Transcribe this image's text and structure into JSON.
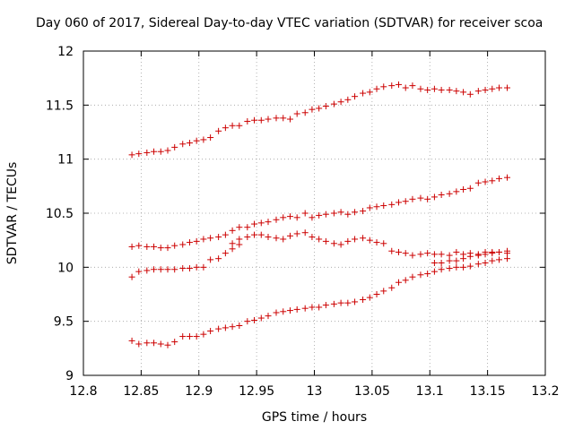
{
  "chart_data": {
    "type": "scatter",
    "title": "Day 060 of 2017, Sidereal Day-to-day VTEC variation (SDTVAR) for receiver scoa",
    "xlabel": "GPS time / hours",
    "ylabel": "SDTVAR / TECUs",
    "xlim": [
      12.8,
      13.2
    ],
    "ylim": [
      9,
      12
    ],
    "xticks": [
      "12.8",
      "12.85",
      "12.9",
      "12.95",
      "13",
      "13.05",
      "13.1",
      "13.15",
      "13.2"
    ],
    "yticks": [
      "9",
      "9.5",
      "10",
      "10.5",
      "11",
      "11.5",
      "12"
    ],
    "marker": "+",
    "marker_color": "#cc0000",
    "grid": true,
    "series": [
      {
        "name": "series-1",
        "x": [
          12.842,
          12.848,
          12.855,
          12.861,
          12.867,
          12.873,
          12.879,
          12.886,
          12.892,
          12.898,
          12.904,
          12.91,
          12.917,
          12.923,
          12.929,
          12.935,
          12.942,
          12.948,
          12.954,
          12.96,
          12.967,
          12.973,
          12.979,
          12.985,
          12.992,
          12.998,
          13.004,
          13.01,
          13.017,
          13.023,
          13.029,
          13.035,
          13.042,
          13.048,
          13.054,
          13.06,
          13.067,
          13.073,
          13.079,
          13.085,
          13.092,
          13.098,
          13.104,
          13.11,
          13.117,
          13.123,
          13.129,
          13.135,
          13.142,
          13.148,
          13.154,
          13.16,
          13.167
        ],
        "y": [
          11.04,
          11.05,
          11.06,
          11.07,
          11.07,
          11.08,
          11.11,
          11.14,
          11.15,
          11.17,
          11.18,
          11.2,
          11.26,
          11.29,
          11.31,
          11.31,
          11.35,
          11.36,
          11.36,
          11.37,
          11.38,
          11.38,
          11.37,
          11.42,
          11.43,
          11.46,
          11.47,
          11.49,
          11.51,
          11.53,
          11.55,
          11.58,
          11.61,
          11.62,
          11.65,
          11.67,
          11.68,
          11.69,
          11.66,
          11.68,
          11.65,
          11.64,
          11.65,
          11.64,
          11.64,
          11.63,
          11.62,
          11.6,
          11.63,
          11.64,
          11.65,
          11.66,
          11.66
        ]
      },
      {
        "name": "series-2",
        "x": [
          12.842,
          12.848,
          12.855,
          12.861,
          12.867,
          12.873,
          12.879,
          12.886,
          12.892,
          12.898,
          12.904,
          12.91,
          12.917,
          12.923,
          12.929,
          12.935,
          12.942,
          12.948,
          12.954,
          12.96,
          12.967,
          12.973,
          12.979,
          12.985,
          12.992,
          12.998,
          13.004,
          13.01,
          13.017,
          13.023,
          13.029,
          13.035,
          13.042,
          13.048,
          13.054,
          13.06,
          13.067,
          13.073,
          13.079,
          13.085,
          13.092,
          13.098,
          13.104,
          13.11,
          13.117,
          13.123,
          13.129,
          13.135,
          13.142,
          13.148,
          13.154,
          13.16,
          13.167
        ],
        "y": [
          10.19,
          10.2,
          10.19,
          10.19,
          10.18,
          10.18,
          10.2,
          10.21,
          10.23,
          10.24,
          10.26,
          10.27,
          10.28,
          10.3,
          10.34,
          10.37,
          10.37,
          10.4,
          10.41,
          10.42,
          10.44,
          10.46,
          10.47,
          10.46,
          10.5,
          10.46,
          10.48,
          10.49,
          10.5,
          10.51,
          10.49,
          10.51,
          10.52,
          10.55,
          10.56,
          10.57,
          10.58,
          10.6,
          10.61,
          10.63,
          10.64,
          10.63,
          10.65,
          10.67,
          10.68,
          10.7,
          10.72,
          10.73,
          10.78,
          10.79,
          10.8,
          10.82,
          10.83
        ]
      },
      {
        "name": "series-3",
        "x": [
          12.929,
          12.935,
          12.942,
          12.948,
          12.954,
          12.96,
          12.967,
          12.973,
          12.979,
          12.985,
          12.992,
          12.998,
          13.004,
          13.01,
          13.017,
          13.023,
          13.029,
          13.035,
          13.042,
          13.048,
          13.054,
          13.06,
          13.067,
          13.073,
          13.079,
          13.085,
          13.092,
          13.098,
          13.104,
          13.11,
          13.117,
          13.123,
          13.129,
          13.135,
          13.142,
          13.148,
          13.154,
          13.16,
          13.167
        ],
        "y": [
          10.22,
          10.26,
          10.28,
          10.3,
          10.3,
          10.28,
          10.27,
          10.26,
          10.29,
          10.31,
          10.32,
          10.28,
          10.26,
          10.24,
          10.22,
          10.21,
          10.24,
          10.26,
          10.27,
          10.25,
          10.23,
          10.22,
          10.15,
          10.14,
          10.13,
          10.11,
          10.12,
          10.13,
          10.12,
          10.12,
          10.11,
          10.14,
          10.12,
          10.13,
          10.11,
          10.12,
          10.13,
          10.14,
          10.15
        ]
      },
      {
        "name": "series-4",
        "x": [
          12.842,
          12.848,
          12.855,
          12.861,
          12.867,
          12.873,
          12.879,
          12.886,
          12.892,
          12.898,
          12.904,
          12.91,
          12.917,
          12.923,
          12.929,
          12.935,
          13.104,
          13.11,
          13.117,
          13.123,
          13.129,
          13.135,
          13.142,
          13.148,
          13.154,
          13.16,
          13.167
        ],
        "y": [
          9.91,
          9.96,
          9.97,
          9.98,
          9.98,
          9.98,
          9.98,
          9.99,
          9.99,
          10.0,
          10.0,
          10.07,
          10.08,
          10.13,
          10.17,
          10.21,
          10.04,
          10.04,
          10.06,
          10.06,
          10.08,
          10.1,
          10.12,
          10.14,
          10.14,
          10.14,
          10.13
        ]
      },
      {
        "name": "series-5",
        "x": [
          12.842,
          12.848,
          12.855,
          12.861,
          12.867,
          12.873,
          12.879,
          12.886,
          12.892,
          12.898,
          12.904,
          12.91,
          12.917,
          12.923,
          12.929,
          12.935,
          12.942,
          12.948,
          12.954,
          12.96,
          12.967,
          12.973,
          12.979,
          12.985,
          12.992,
          12.998,
          13.004,
          13.01,
          13.017,
          13.023,
          13.029,
          13.035,
          13.042,
          13.048,
          13.054,
          13.06,
          13.067,
          13.073,
          13.079,
          13.085,
          13.092,
          13.098,
          13.104,
          13.11,
          13.117,
          13.123,
          13.129,
          13.135,
          13.142,
          13.148,
          13.154,
          13.16,
          13.167
        ],
        "y": [
          9.32,
          9.29,
          9.3,
          9.3,
          9.29,
          9.28,
          9.31,
          9.36,
          9.36,
          9.36,
          9.38,
          9.41,
          9.43,
          9.44,
          9.45,
          9.46,
          9.5,
          9.51,
          9.53,
          9.55,
          9.58,
          9.59,
          9.6,
          9.61,
          9.62,
          9.63,
          9.63,
          9.65,
          9.66,
          9.67,
          9.67,
          9.68,
          9.7,
          9.72,
          9.75,
          9.78,
          9.81,
          9.86,
          9.88,
          9.91,
          9.93,
          9.94,
          9.96,
          9.98,
          9.99,
          10.0,
          10.0,
          10.01,
          10.03,
          10.04,
          10.06,
          10.07,
          10.08
        ]
      }
    ]
  }
}
